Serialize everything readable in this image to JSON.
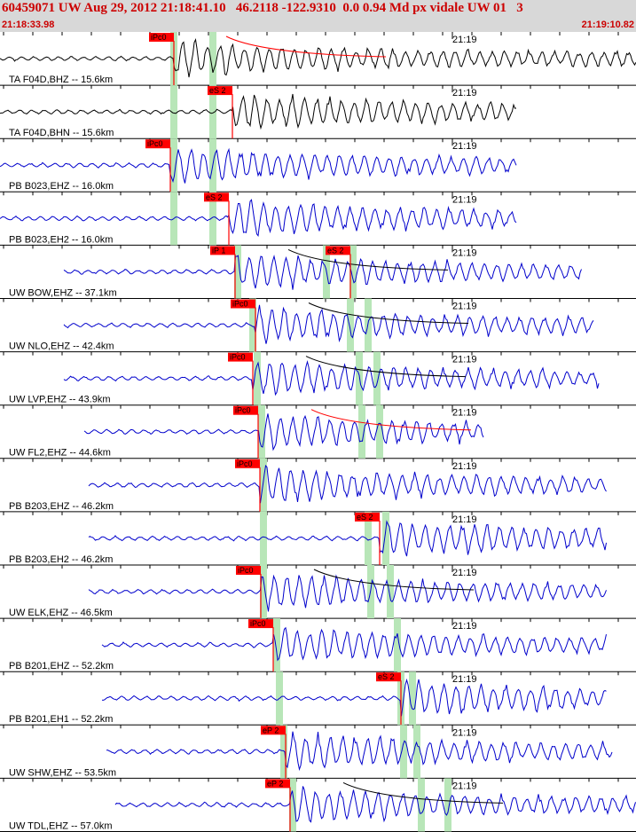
{
  "header": {
    "title": "60459071 UW Aug 29, 2012 21:18:41.10   46.2118 -122.9310  0.0 0.94 Md px vidale UW 01   3",
    "start_time": "21:18:33.98",
    "end_time": "21:19:10.82"
  },
  "colors": {
    "header_bg": "#d8d8d8",
    "header_text": "#cc0000",
    "trace_black": "#000000",
    "trace_blue": "#0000cc",
    "pick_red": "#ff0000",
    "pick_band": "#b8e6b8",
    "grid": "#000000"
  },
  "channels": [
    {
      "label": "TA F04D,BHZ -- 15.6km",
      "tick": "21:19",
      "color": "black",
      "picks": [
        {
          "text": "iPc0"
        }
      ]
    },
    {
      "label": "TA F04D,BHN -- 15.6km",
      "tick": "21:19",
      "color": "black",
      "picks": [
        {
          "text": "eS 2"
        }
      ]
    },
    {
      "label": "PB B023,EHZ -- 16.0km",
      "tick": "21:19",
      "color": "blue",
      "picks": [
        {
          "text": "iPc0"
        }
      ]
    },
    {
      "label": "PB B023,EH2 -- 16.0km",
      "tick": "21:19",
      "color": "blue",
      "picks": [
        {
          "text": "eS 2"
        }
      ]
    },
    {
      "label": "UW BOW,EHZ -- 37.1km",
      "tick": "21:19",
      "color": "blue",
      "picks": [
        {
          "text": "iP 1"
        },
        {
          "text": "eS 2"
        }
      ]
    },
    {
      "label": "UW NLO,EHZ -- 42.4km",
      "tick": "21:19",
      "color": "blue",
      "picks": [
        {
          "text": "iPc0"
        }
      ]
    },
    {
      "label": "UW LVP,EHZ -- 43.9km",
      "tick": "21:19",
      "color": "blue",
      "picks": [
        {
          "text": "iPc0"
        }
      ]
    },
    {
      "label": "UW FL2,EHZ -- 44.6km",
      "tick": "21:19",
      "color": "blue",
      "picks": [
        {
          "text": "iPc0"
        }
      ]
    },
    {
      "label": "PB B203,EHZ -- 46.2km",
      "tick": "21:19",
      "color": "blue",
      "picks": [
        {
          "text": "iPc0"
        }
      ]
    },
    {
      "label": "PB B203,EH2 -- 46.2km",
      "tick": "21:19",
      "color": "blue",
      "picks": [
        {
          "text": "eS 2"
        }
      ]
    },
    {
      "label": "UW ELK,EHZ -- 46.5km",
      "tick": "21:19",
      "color": "blue",
      "picks": [
        {
          "text": "iPc0"
        }
      ]
    },
    {
      "label": "PB B201,EHZ -- 52.2km",
      "tick": "21:19",
      "color": "blue",
      "picks": [
        {
          "text": "iPc0"
        }
      ]
    },
    {
      "label": "PB B201,EH1 -- 52.2km",
      "tick": "21:19",
      "color": "blue",
      "picks": [
        {
          "text": "eS 2"
        }
      ]
    },
    {
      "label": "UW SHW,EHZ -- 53.5km",
      "tick": "21:19",
      "color": "blue",
      "picks": [
        {
          "text": "eP 2"
        }
      ]
    },
    {
      "label": "UW TDL,EHZ -- 57.0km",
      "tick": "21:19",
      "color": "blue",
      "picks": [
        {
          "text": "eP 2"
        }
      ]
    }
  ]
}
